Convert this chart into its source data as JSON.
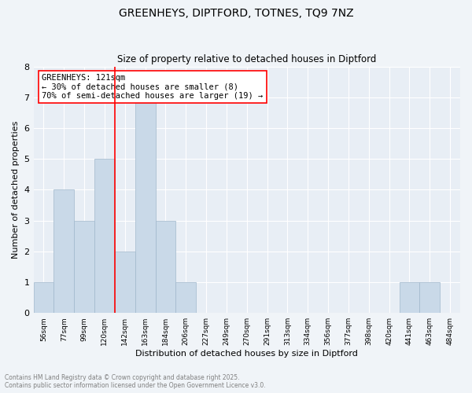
{
  "title1": "GREENHEYS, DIPTFORD, TOTNES, TQ9 7NZ",
  "title2": "Size of property relative to detached houses in Diptford",
  "xlabel": "Distribution of detached houses by size in Diptford",
  "ylabel": "Number of detached properties",
  "categories": [
    "56sqm",
    "77sqm",
    "99sqm",
    "120sqm",
    "142sqm",
    "163sqm",
    "184sqm",
    "206sqm",
    "227sqm",
    "249sqm",
    "270sqm",
    "291sqm",
    "313sqm",
    "334sqm",
    "356sqm",
    "377sqm",
    "398sqm",
    "420sqm",
    "441sqm",
    "463sqm",
    "484sqm"
  ],
  "values": [
    1,
    4,
    3,
    5,
    2,
    7,
    3,
    1,
    0,
    0,
    0,
    0,
    0,
    0,
    0,
    0,
    0,
    0,
    1,
    1,
    0
  ],
  "bar_color": "#c9d9e8",
  "bar_edge_color": "#a0b8cc",
  "red_line_x": 3.5,
  "annotation_title": "GREENHEYS: 121sqm",
  "annotation_line1": "← 30% of detached houses are smaller (8)",
  "annotation_line2": "70% of semi-detached houses are larger (19) →",
  "ylim": [
    0,
    8
  ],
  "yticks": [
    0,
    1,
    2,
    3,
    4,
    5,
    6,
    7,
    8
  ],
  "footer1": "Contains HM Land Registry data © Crown copyright and database right 2025.",
  "footer2": "Contains public sector information licensed under the Open Government Licence v3.0.",
  "background_color": "#f0f4f8",
  "plot_bg_color": "#e8eef5"
}
